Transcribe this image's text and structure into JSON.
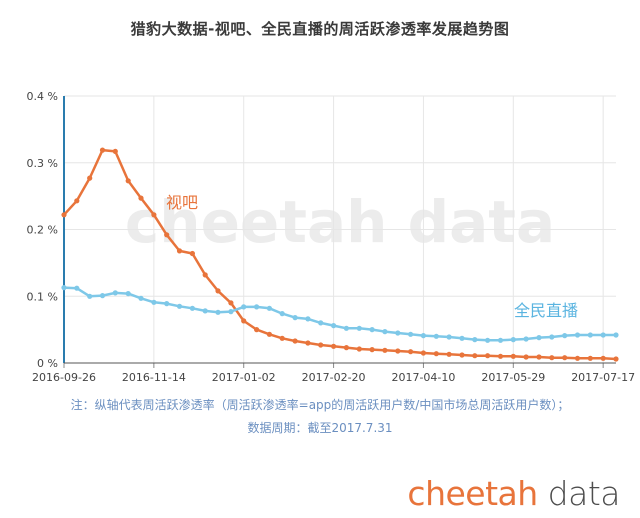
{
  "title": "猎豹大数据-视吧、全民直播的周活跃渗透率发展趋势图",
  "watermark": "cheetah data",
  "note_line1": "注：纵轴代表周活跃渗透率（周活跃渗透率=app的周活跃用户数/中国市场总周活跃用户数）；",
  "note_line2": "数据周期：截至2017.7.31",
  "logo": {
    "part1": "cheetah",
    "part2": " data"
  },
  "colors": {
    "shiba": "#e8743b",
    "quanmin": "#7ec8e8",
    "axis": "#2a7cae",
    "note": "#6b8fc0"
  },
  "chart_data": {
    "type": "line",
    "title": "猎豹大数据-视吧、全民直播的周活跃渗透率发展趋势图",
    "xlabel": "",
    "ylabel": "",
    "ylim": [
      0,
      0.4
    ],
    "yticks": [
      "0 %",
      "0.1 %",
      "0.2 %",
      "0.3 %",
      "0.4 %"
    ],
    "xticks": [
      "2016-09-26",
      "2016-11-14",
      "2017-01-02",
      "2017-02-20",
      "2017-04-10",
      "2017-05-29",
      "2017-07-17"
    ],
    "grid": true,
    "x": [
      "2016-09-26",
      "2016-10-03",
      "2016-10-10",
      "2016-10-17",
      "2016-10-24",
      "2016-10-31",
      "2016-11-07",
      "2016-11-14",
      "2016-11-21",
      "2016-11-28",
      "2016-12-05",
      "2016-12-12",
      "2016-12-19",
      "2016-12-26",
      "2017-01-02",
      "2017-01-09",
      "2017-01-16",
      "2017-01-23",
      "2017-01-30",
      "2017-02-06",
      "2017-02-13",
      "2017-02-20",
      "2017-02-27",
      "2017-03-06",
      "2017-03-13",
      "2017-03-20",
      "2017-03-27",
      "2017-04-03",
      "2017-04-10",
      "2017-04-17",
      "2017-04-24",
      "2017-05-01",
      "2017-05-08",
      "2017-05-15",
      "2017-05-22",
      "2017-05-29",
      "2017-06-05",
      "2017-06-12",
      "2017-06-19",
      "2017-06-26",
      "2017-07-03",
      "2017-07-10",
      "2017-07-17",
      "2017-07-24"
    ],
    "series": [
      {
        "name": "视吧",
        "color": "#e8743b",
        "values": [
          0.222,
          0.243,
          0.277,
          0.319,
          0.317,
          0.273,
          0.247,
          0.222,
          0.192,
          0.168,
          0.164,
          0.132,
          0.108,
          0.09,
          0.063,
          0.05,
          0.043,
          0.037,
          0.033,
          0.03,
          0.027,
          0.025,
          0.023,
          0.021,
          0.02,
          0.019,
          0.018,
          0.017,
          0.015,
          0.014,
          0.013,
          0.012,
          0.011,
          0.011,
          0.01,
          0.01,
          0.009,
          0.009,
          0.008,
          0.008,
          0.007,
          0.007,
          0.007,
          0.006
        ]
      },
      {
        "name": "全民直播",
        "color": "#7ec8e8",
        "values": [
          0.113,
          0.112,
          0.1,
          0.101,
          0.105,
          0.104,
          0.097,
          0.091,
          0.089,
          0.085,
          0.082,
          0.078,
          0.076,
          0.077,
          0.084,
          0.084,
          0.082,
          0.074,
          0.068,
          0.066,
          0.06,
          0.056,
          0.052,
          0.052,
          0.05,
          0.047,
          0.045,
          0.043,
          0.041,
          0.04,
          0.039,
          0.037,
          0.035,
          0.034,
          0.034,
          0.035,
          0.036,
          0.038,
          0.039,
          0.041,
          0.042,
          0.042,
          0.042,
          0.042
        ]
      }
    ]
  }
}
